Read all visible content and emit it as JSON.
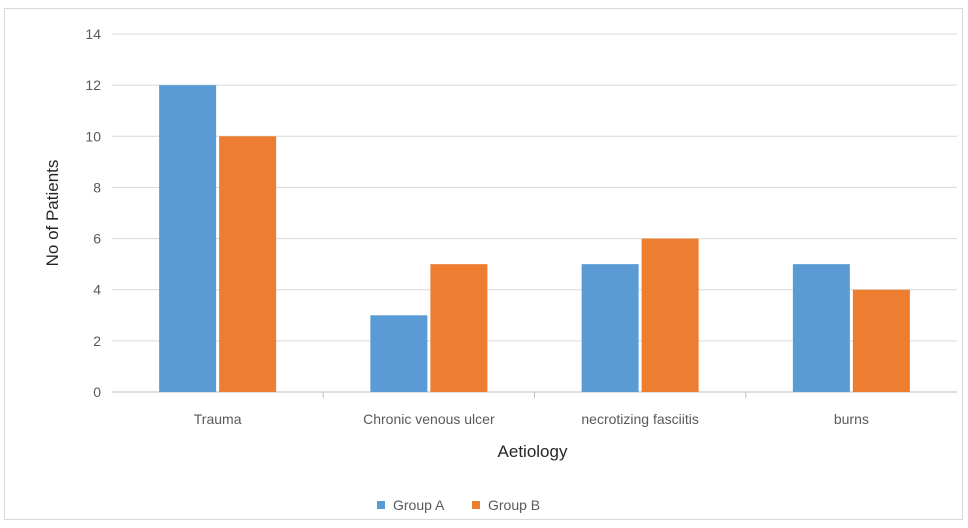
{
  "chart_data": {
    "type": "bar",
    "title": "",
    "xlabel": "Aetiology",
    "ylabel": "No of Patients",
    "categories": [
      "Trauma",
      "Chronic venous ulcer",
      "necrotizing fasciitis",
      "burns"
    ],
    "series": [
      {
        "name": "Group A",
        "values": [
          12,
          3,
          5,
          5
        ],
        "color": "#5b9bd5"
      },
      {
        "name": "Group B",
        "values": [
          10,
          5,
          6,
          4
        ],
        "color": "#ed7d31"
      }
    ],
    "ylim": [
      0,
      14
    ],
    "yticks": [
      0,
      2,
      4,
      6,
      8,
      10,
      12,
      14
    ],
    "grid": true,
    "legend": "bottom"
  }
}
